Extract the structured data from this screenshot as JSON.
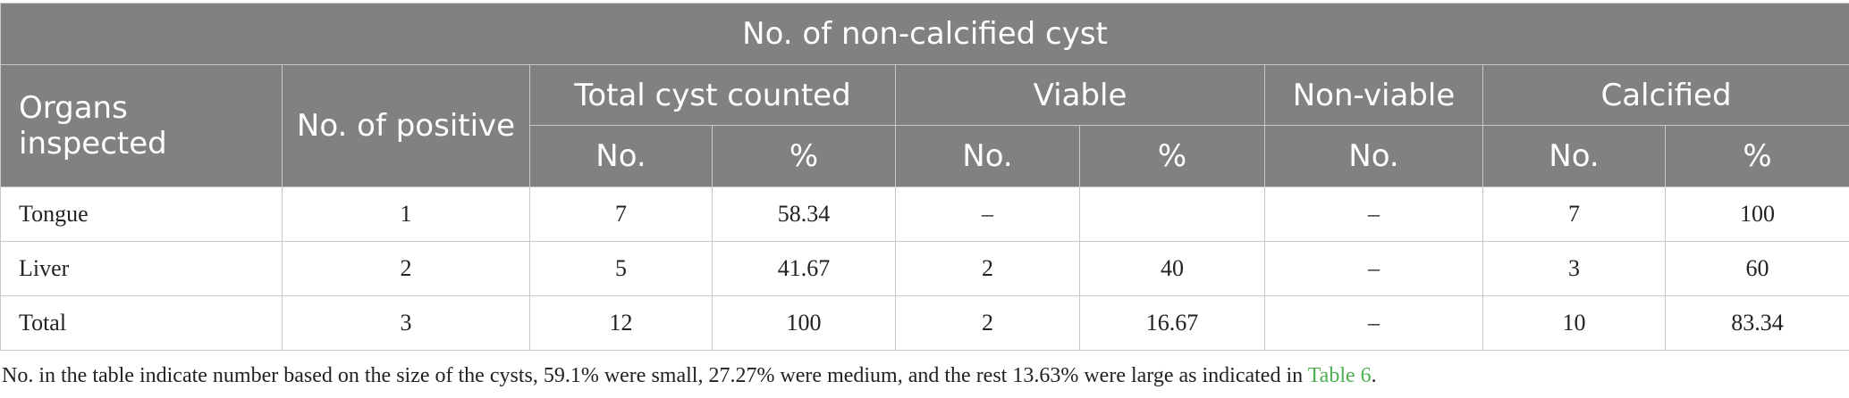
{
  "table": {
    "title": "No. of non-calcified cyst",
    "col_organs": "Organs inspected",
    "col_positive": "No. of positive",
    "group_total": "Total cyst counted",
    "group_viable": "Viable",
    "group_nonviable": "Non-viable",
    "group_calcified": "Calcified",
    "sub_no": "No.",
    "sub_pct": "%",
    "rows": [
      {
        "organ": "Tongue",
        "positive": "1",
        "total_no": "7",
        "total_pct": "58.34",
        "viable_no": "–",
        "viable_pct": "",
        "nonviable_no": "–",
        "calc_no": "7",
        "calc_pct": "100"
      },
      {
        "organ": "Liver",
        "positive": "2",
        "total_no": "5",
        "total_pct": "41.67",
        "viable_no": "2",
        "viable_pct": "40",
        "nonviable_no": "–",
        "calc_no": "3",
        "calc_pct": "60"
      },
      {
        "organ": "Total",
        "positive": "3",
        "total_no": "12",
        "total_pct": "100",
        "viable_no": "2",
        "viable_pct": "16.67",
        "nonviable_no": "–",
        "calc_no": "10",
        "calc_pct": "83.34"
      }
    ]
  },
  "footnote": {
    "text": "No. in the table indicate number based on the size of the cysts, 59.1% were small, 27.27% were medium, and the rest 13.63% were large as indicated in ",
    "link": "Table 6",
    "end": "."
  }
}
